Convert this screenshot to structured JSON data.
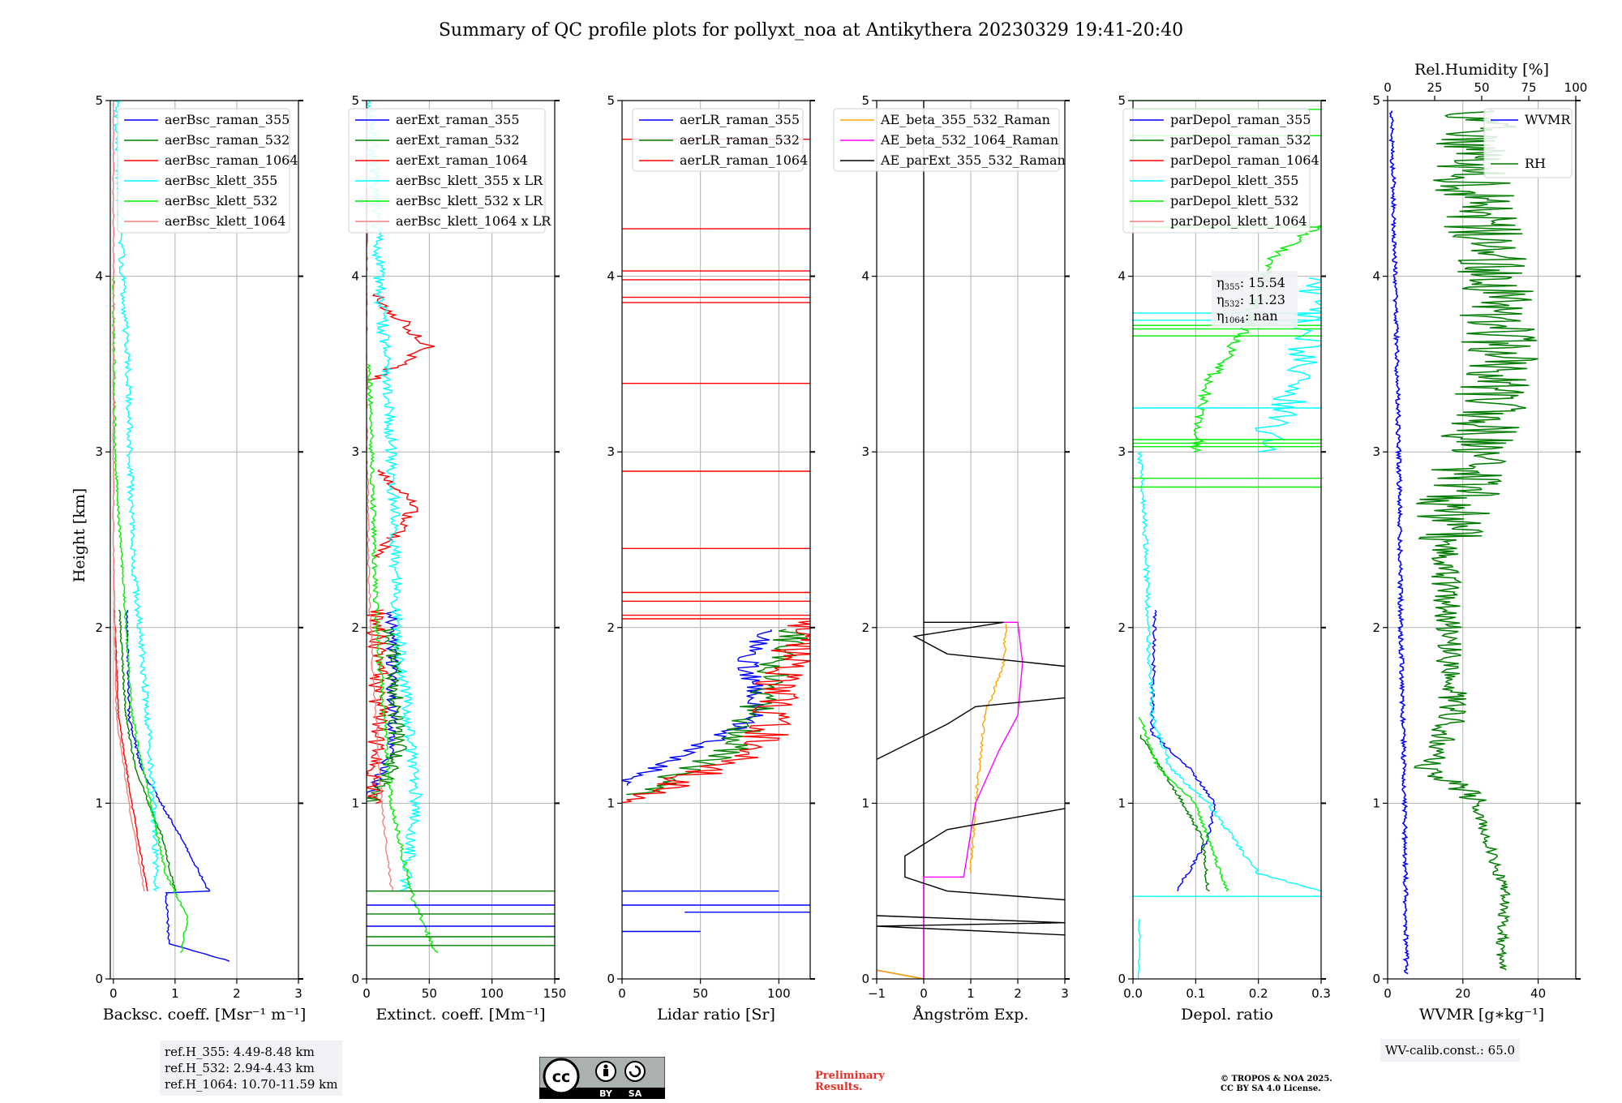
{
  "title": "Summary of QC profile plots for pollyxt_noa at Antikythera 20230329 19:41-20:40",
  "ylabel": "Height [km]",
  "yticks": [
    0,
    1,
    2,
    3,
    4,
    5
  ],
  "colors": {
    "blue": "#0000ff",
    "green": "#008000",
    "red": "#ff0000",
    "cyan": "#00ffff",
    "lime": "#00ee00",
    "salmon": "#f08080",
    "orange": "#ffa500",
    "magenta": "#ff00ff",
    "black": "#000000",
    "gray": "#b0b0b0",
    "darkgreen": "#007a00"
  },
  "chart_data": [
    {
      "type": "line",
      "xlabel": "Backsc. coeff. [Msr⁻¹ m⁻¹]",
      "xlim": [
        -0.05,
        3
      ],
      "ylim": [
        0,
        5
      ],
      "xticks": [
        "0",
        "1",
        "2",
        "3"
      ],
      "legend_position": "top",
      "legend": [
        "aerBsc_raman_355",
        "aerBsc_raman_532",
        "aerBsc_raman_1064",
        "aerBsc_klett_355",
        "aerBsc_klett_532",
        "aerBsc_klett_1064"
      ]
    },
    {
      "type": "line",
      "xlabel": "Extinct. coeff. [Mm⁻¹]",
      "xlim": [
        0,
        150
      ],
      "ylim": [
        0,
        5
      ],
      "xticks": [
        "0",
        "50",
        "100",
        "150"
      ],
      "legend_position": "top",
      "legend": [
        "aerExt_raman_355",
        "aerExt_raman_532",
        "aerExt_raman_1064",
        "aerBsc_klett_355 x LR",
        "aerBsc_klett_532 x LR",
        "aerBsc_klett_1064 x LR"
      ]
    },
    {
      "type": "line",
      "xlabel": "Lidar ratio [Sr]",
      "xlim": [
        0,
        120
      ],
      "ylim": [
        0,
        5
      ],
      "xticks": [
        "0",
        "50",
        "100"
      ],
      "legend_position": "top",
      "legend": [
        "aerLR_raman_355",
        "aerLR_raman_532",
        "aerLR_raman_1064"
      ]
    },
    {
      "type": "line",
      "xlabel": "Ångström Exp.",
      "xlim": [
        -1,
        3
      ],
      "ylim": [
        0,
        5
      ],
      "xticks": [
        "−1",
        "0",
        "1",
        "2",
        "3"
      ],
      "legend_position": "top",
      "legend": [
        "AE_beta_355_532_Raman",
        "AE_beta_532_1064_Raman",
        "AE_parExt_355_532_Raman"
      ]
    },
    {
      "type": "line",
      "xlabel": "Depol. ratio",
      "xlim": [
        0,
        0.3
      ],
      "ylim": [
        0,
        5
      ],
      "xticks": [
        "0.0",
        "0.1",
        "0.2",
        "0.3"
      ],
      "legend_position": "top",
      "legend": [
        "parDepol_raman_355",
        "parDepol_raman_532",
        "parDepol_raman_1064",
        "parDepol_klett_355",
        "parDepol_klett_532",
        "parDepol_klett_1064"
      ],
      "annotations": [
        "15.54",
        "11.23",
        "nan"
      ]
    },
    {
      "type": "line",
      "xlabel": "WVMR [g∗kg⁻¹]",
      "xlim": [
        0,
        50
      ],
      "ylim": [
        0,
        5
      ],
      "xticks": [
        "0",
        "20",
        "40"
      ],
      "top_xlabel": "Rel.Humidity [%]",
      "top_xlim": [
        0,
        100
      ],
      "top_xticks": [
        "0",
        "25",
        "50",
        "75",
        "100"
      ],
      "legend": [
        "WVMR",
        "RH"
      ]
    }
  ],
  "eta_labels": [
    "η",
    "355",
    ": 15.54",
    "532",
    ": 11.23",
    "1064",
    ": nan"
  ],
  "ref_heights": [
    "ref.H_355: 4.49-8.48 km",
    "ref.H_532: 2.94-4.43 km",
    "ref.H_1064: 10.70-11.59 km"
  ],
  "wv_calib": "WV-calib.const.: 65.0",
  "preliminary": [
    "Preliminary",
    "Results."
  ],
  "copyright": [
    "© TROPOS & NOA 2025.",
    "CC BY SA 4.0 License."
  ],
  "cc_badge": [
    "BY",
    "SA"
  ]
}
